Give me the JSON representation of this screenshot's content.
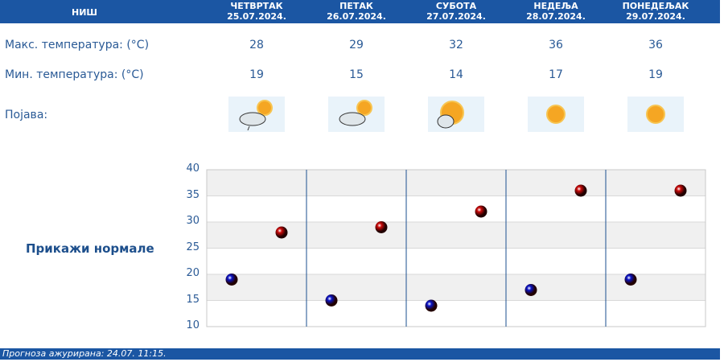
{
  "header": {
    "city": "НИШ",
    "days": [
      {
        "name": "ЧЕТВРТАК",
        "date": "25.07.2024.",
        "max": "28",
        "min": "19",
        "icon": "cloudy-sun-light-rain-icon"
      },
      {
        "name": "ПЕТАК",
        "date": "26.07.2024.",
        "max": "29",
        "min": "15",
        "icon": "partly-cloudy-icon"
      },
      {
        "name": "СУБОТА",
        "date": "27.07.2024.",
        "max": "32",
        "min": "14",
        "icon": "mostly-sunny-icon"
      },
      {
        "name": "НЕДЕЉА",
        "date": "28.07.2024.",
        "max": "36",
        "min": "17",
        "icon": "sunny-icon"
      },
      {
        "name": "ПОНЕДЕЉАК",
        "date": "29.07.2024.",
        "max": "36",
        "min": "19",
        "icon": "sunny-icon"
      }
    ]
  },
  "labels": {
    "max": "Макс. температура: (°C)",
    "min": "Мин. температура: (°C)",
    "phenomenon": "Појава:"
  },
  "show_normals": "Прикажи нормале",
  "chart_data": {
    "type": "scatter",
    "ylim": [
      10,
      40
    ],
    "yticks": [
      "40",
      "35",
      "30",
      "25",
      "20",
      "15",
      "10"
    ],
    "categories": [
      "25.07.2024.",
      "26.07.2024.",
      "27.07.2024.",
      "28.07.2024.",
      "29.07.2024."
    ],
    "series": [
      {
        "values": [
          19,
          15,
          14,
          17,
          19
        ],
        "color": "#0a14c8"
      },
      {
        "values": [
          28,
          29,
          32,
          36,
          36
        ],
        "color": "#cc0a0a"
      }
    ],
    "grid": true
  },
  "footer": "Прогноза ажурирана:  24.07. 11:15."
}
